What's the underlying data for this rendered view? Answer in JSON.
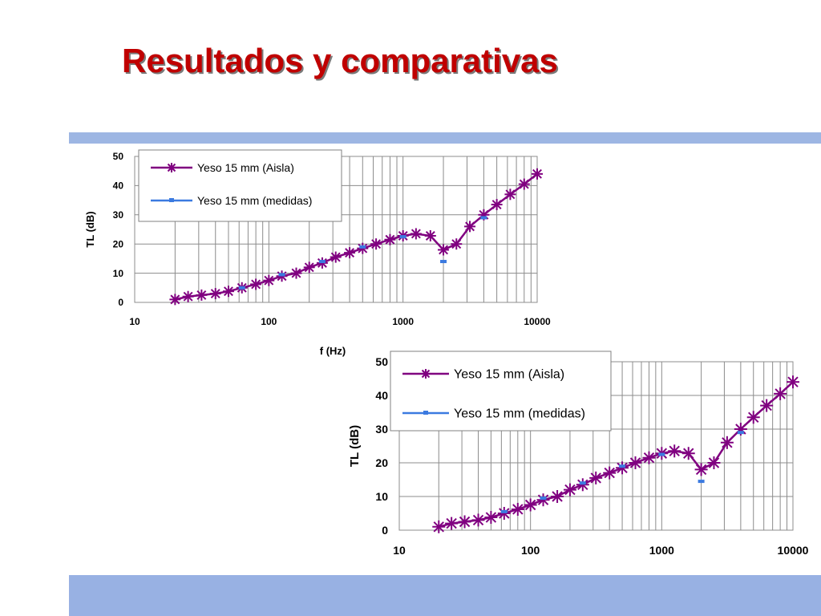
{
  "slide": {
    "title": "Resultados y comparativas"
  },
  "colors": {
    "title": "#c00000",
    "band": "#9db6e3",
    "series_aisla": "#800080",
    "series_medidas": "#3b7ae0",
    "grid": "#8c8c8c"
  },
  "chart_data": [
    {
      "type": "line",
      "x_scale": "log",
      "xlim": [
        10,
        10000
      ],
      "ylim": [
        0,
        50
      ],
      "xticks": [
        "10",
        "100",
        "1000",
        "10000"
      ],
      "yticks": [
        "0",
        "10",
        "20",
        "30",
        "40",
        "50"
      ],
      "xlabel": "f (Hz)",
      "ylabel": "TL (dB)",
      "grid": true,
      "legend_position": "top-left",
      "series": [
        {
          "name": "Yeso  15 mm (Aisla)",
          "marker": "asterisk",
          "x": [
            20,
            25,
            31.5,
            40,
            50,
            63,
            80,
            100,
            125,
            160,
            200,
            250,
            315,
            400,
            500,
            630,
            800,
            1000,
            1250,
            1600,
            2000,
            2500,
            3150,
            4000,
            5000,
            6300,
            8000,
            10000
          ],
          "y": [
            1,
            2,
            2.5,
            3,
            3.8,
            5,
            6.2,
            7.5,
            9,
            10,
            12,
            13.5,
            15.5,
            17,
            18.5,
            20,
            21.5,
            22.8,
            23.5,
            22.8,
            18,
            20,
            26,
            30,
            33.5,
            37,
            40.5,
            44
          ]
        },
        {
          "name": "Yeso  15 mm (medidas)",
          "marker": "dash",
          "x": [
            63,
            125,
            250,
            500,
            1000,
            2000,
            4000
          ],
          "y": [
            5,
            9.5,
            14,
            19,
            22.5,
            14,
            29
          ]
        }
      ]
    },
    {
      "type": "line",
      "x_scale": "log",
      "xlim": [
        10,
        10000
      ],
      "ylim": [
        0,
        50
      ],
      "xticks": [
        "10",
        "100",
        "1000",
        "10000"
      ],
      "yticks": [
        "0",
        "10",
        "20",
        "30",
        "40",
        "50"
      ],
      "xlabel": "f (Hz)",
      "ylabel": "TL (dB)",
      "grid": true,
      "legend_position": "top-left",
      "series": [
        {
          "name": "Yeso  15 mm (Aisla)",
          "marker": "asterisk",
          "x": [
            20,
            25,
            31.5,
            40,
            50,
            63,
            80,
            100,
            125,
            160,
            200,
            250,
            315,
            400,
            500,
            630,
            800,
            1000,
            1250,
            1600,
            2000,
            2500,
            3150,
            4000,
            5000,
            6300,
            8000,
            10000
          ],
          "y": [
            1,
            2,
            2.5,
            3,
            3.8,
            5,
            6.2,
            7.5,
            9,
            10,
            12,
            13.5,
            15.5,
            17,
            18.5,
            20,
            21.5,
            22.8,
            23.5,
            22.8,
            18,
            20,
            26,
            30,
            33.5,
            37,
            40.5,
            44
          ]
        },
        {
          "name": "Yeso  15 mm (medidas)",
          "marker": "dash",
          "x": [
            63,
            125,
            250,
            500,
            1000,
            2000,
            4000
          ],
          "y": [
            5.5,
            9.5,
            14,
            19,
            22.5,
            14.5,
            29
          ]
        }
      ]
    }
  ]
}
